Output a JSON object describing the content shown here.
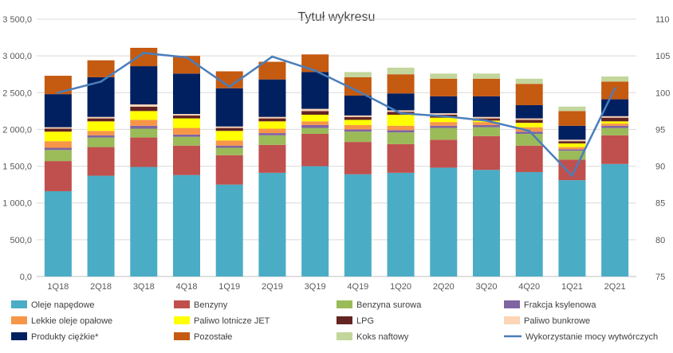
{
  "chart_data": {
    "type": "bar",
    "stacked": true,
    "title": "Tytuł wykresu",
    "categories": [
      "1Q18",
      "2Q18",
      "3Q18",
      "4Q18",
      "1Q19",
      "2Q19",
      "3Q19",
      "4Q19",
      "1Q20",
      "2Q20",
      "3Q20",
      "4Q20",
      "1Q21",
      "2Q21"
    ],
    "ylim": [
      0,
      3500
    ],
    "yticks": [
      "0,0",
      "500,0",
      "1 000,0",
      "1 500,0",
      "2 000,0",
      "2 500,0",
      "3 000,0",
      "3 500,0"
    ],
    "y2lim": [
      75,
      110
    ],
    "y2ticks": [
      "75",
      "80",
      "85",
      "90",
      "95",
      "100",
      "105",
      "110"
    ],
    "grid": true,
    "legend_position": "bottom",
    "series": [
      {
        "name": "Oleje napędowe",
        "color": "#4bacc6",
        "values": [
          1160,
          1370,
          1490,
          1380,
          1250,
          1410,
          1500,
          1390,
          1410,
          1480,
          1450,
          1420,
          1310,
          1530
        ]
      },
      {
        "name": "Benzyny",
        "color": "#c0504d",
        "values": [
          410,
          390,
          400,
          400,
          400,
          380,
          440,
          440,
          390,
          380,
          460,
          360,
          280,
          390
        ]
      },
      {
        "name": "Benzyna surowa",
        "color": "#9bbb59",
        "values": [
          150,
          130,
          120,
          120,
          100,
          130,
          80,
          140,
          160,
          160,
          120,
          160,
          120,
          100
        ]
      },
      {
        "name": "Frakcja ksylenowa",
        "color": "#8064a2",
        "values": [
          30,
          30,
          40,
          30,
          30,
          30,
          40,
          30,
          30,
          30,
          30,
          30,
          20,
          30
        ]
      },
      {
        "name": "Lekkie oleje opałowe",
        "color": "#f79646",
        "values": [
          90,
          60,
          80,
          90,
          70,
          60,
          50,
          60,
          60,
          50,
          40,
          60,
          30,
          30
        ]
      },
      {
        "name": "Paliwo lotnicze JET",
        "color": "#ffff00",
        "values": [
          130,
          130,
          120,
          130,
          130,
          100,
          90,
          70,
          150,
          60,
          20,
          60,
          50,
          30
        ]
      },
      {
        "name": "LPG",
        "color": "#632423",
        "values": [
          40,
          40,
          60,
          40,
          40,
          40,
          50,
          40,
          40,
          40,
          30,
          40,
          30,
          50
        ]
      },
      {
        "name": "Paliwo bunkrowe",
        "color": "#fbd5b5",
        "values": [
          20,
          20,
          30,
          20,
          20,
          20,
          30,
          20,
          20,
          20,
          20,
          20,
          20,
          20
        ]
      },
      {
        "name": "Produkty ciężkie*",
        "color": "#002060",
        "values": [
          450,
          540,
          520,
          550,
          520,
          510,
          500,
          270,
          230,
          230,
          280,
          180,
          190,
          230
        ]
      },
      {
        "name": "Pozostałe",
        "color": "#c55a11",
        "values": [
          250,
          230,
          250,
          240,
          230,
          240,
          240,
          250,
          260,
          240,
          240,
          290,
          200,
          240
        ]
      },
      {
        "name": "Koks naftowy",
        "color": "#c3d69b",
        "values": [
          0,
          0,
          0,
          0,
          0,
          0,
          0,
          70,
          90,
          70,
          70,
          70,
          60,
          70
        ]
      }
    ],
    "line_series": {
      "name": "Wykorzystanie mocy wytwórczych",
      "color": "#4a7ebb",
      "axis": "secondary",
      "values": [
        100,
        101.5,
        105.4,
        104.8,
        100.8,
        104.9,
        103,
        100.2,
        97.2,
        96.8,
        96.2,
        94.8,
        88.7,
        100.6
      ]
    }
  }
}
